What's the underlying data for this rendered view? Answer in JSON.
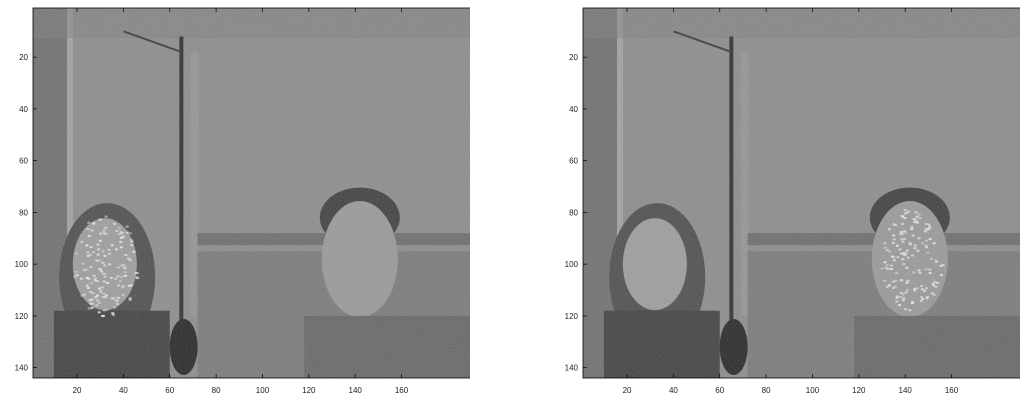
{
  "figure": {
    "x_ticks": [
      "20",
      "40",
      "60",
      "80",
      "100",
      "120",
      "140",
      "160"
    ],
    "y_ticks": [
      "20",
      "40",
      "60",
      "80",
      "100",
      "120",
      "140"
    ],
    "x_tick_values": [
      20,
      40,
      60,
      80,
      100,
      120,
      140,
      160
    ],
    "y_tick_values": [
      20,
      40,
      60,
      80,
      100,
      120,
      140
    ],
    "x_range": [
      1,
      196
    ],
    "y_range": [
      1,
      144
    ],
    "image_background": "#8c8c8c",
    "highlight_color": "#e6e6e6"
  },
  "panels": [
    {
      "id": "left",
      "highlighted_subject": "left-person"
    },
    {
      "id": "right",
      "highlighted_subject": "right-person"
    }
  ]
}
